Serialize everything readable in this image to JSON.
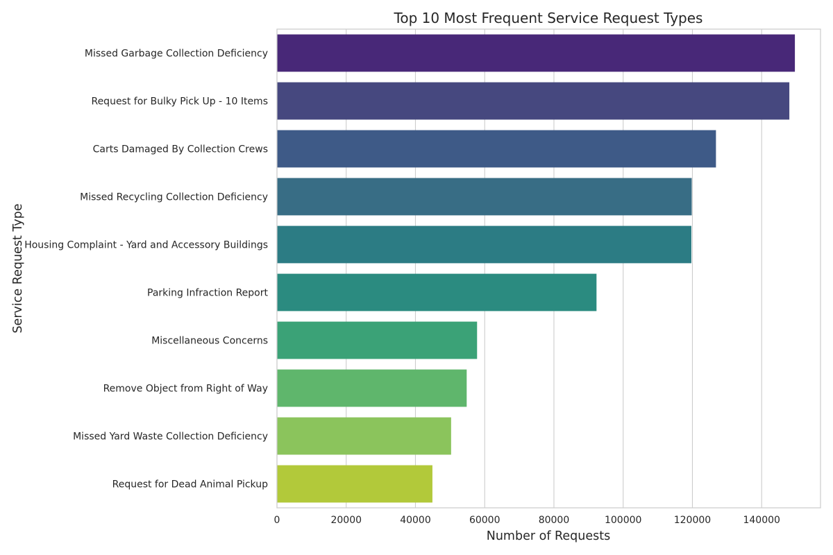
{
  "chart_data": {
    "type": "bar",
    "orientation": "horizontal",
    "title": "Top 10 Most Frequent Service Request Types",
    "xlabel": "Number of Requests",
    "ylabel": "Service Request Type",
    "xlim": [
      0,
      157000
    ],
    "xticks": [
      0,
      20000,
      40000,
      60000,
      80000,
      100000,
      120000,
      140000
    ],
    "xtick_labels": [
      "0",
      "20000",
      "40000",
      "60000",
      "80000",
      "100000",
      "120000",
      "140000"
    ],
    "grid": true,
    "categories": [
      "Missed Garbage Collection Deficiency",
      "Request for Bulky Pick Up - 10 Items",
      "Carts Damaged By Collection Crews",
      "Missed Recycling Collection Deficiency",
      "Housing Complaint - Yard and Accessory Buildings",
      "Parking Infraction Report",
      "Miscellaneous Concerns",
      "Remove Object from Right of Way",
      "Missed Yard Waste Collection Deficiency",
      "Request for Dead Animal Pickup"
    ],
    "values": [
      149600,
      148000,
      126800,
      119800,
      119700,
      92300,
      57800,
      54800,
      50300,
      44900
    ],
    "colors": [
      "#482878",
      "#46487f",
      "#3e5a87",
      "#386d85",
      "#2c7c84",
      "#2b8b80",
      "#3ba277",
      "#5fb66c",
      "#8bc45c",
      "#b2c93a"
    ]
  }
}
